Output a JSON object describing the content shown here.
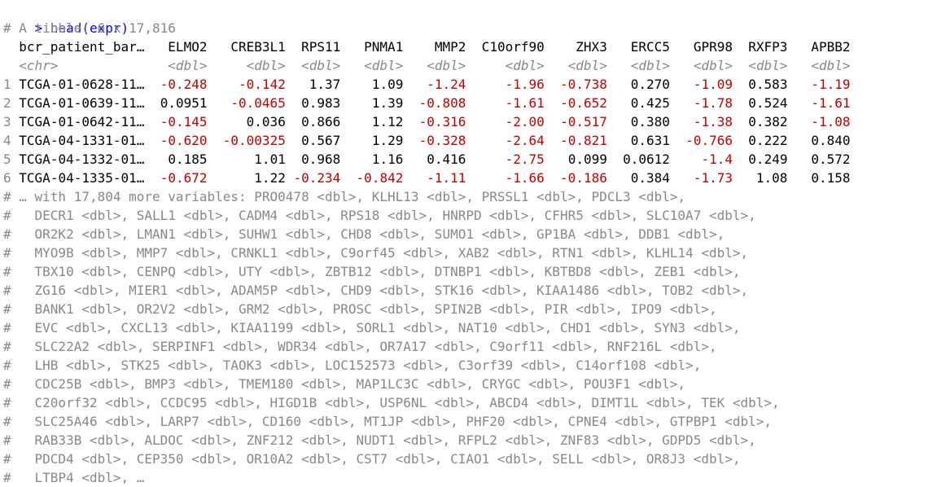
{
  "console": {
    "prompt": ">",
    "command": "head(expr)",
    "tibble_header": "# A tibble: 6 x 17,816",
    "columns": [
      {
        "name": "bcr_patient_bar…",
        "type": "<chr>"
      },
      {
        "name": "ELMO2",
        "type": "<dbl>"
      },
      {
        "name": "CREB3L1",
        "type": "<dbl>"
      },
      {
        "name": "RPS11",
        "type": "<dbl>"
      },
      {
        "name": "PNMA1",
        "type": "<dbl>"
      },
      {
        "name": "MMP2",
        "type": "<dbl>"
      },
      {
        "name": "C10orf90",
        "type": "<dbl>"
      },
      {
        "name": "ZHX3",
        "type": "<dbl>"
      },
      {
        "name": "ERCC5",
        "type": "<dbl>"
      },
      {
        "name": "GPR98",
        "type": "<dbl>"
      },
      {
        "name": "RXFP3",
        "type": "<dbl>"
      },
      {
        "name": "APBB2",
        "type": "<dbl>"
      }
    ],
    "rows": [
      {
        "n": "1",
        "cells": [
          "TCGA-01-0628-11…",
          "-0.248",
          "-0.142",
          "1.37",
          "1.09",
          "-1.24",
          "-1.96",
          "-0.738",
          "0.270",
          "-1.09",
          "0.583",
          "-1.19"
        ]
      },
      {
        "n": "2",
        "cells": [
          "TCGA-01-0639-11…",
          "0.0951",
          "-0.0465",
          "0.983",
          "1.39",
          "-0.808",
          "-1.61",
          "-0.652",
          "0.425",
          "-1.78",
          "0.524",
          "-1.61"
        ]
      },
      {
        "n": "3",
        "cells": [
          "TCGA-01-0642-11…",
          "-0.145",
          "0.036",
          "0.866",
          "1.12",
          "-0.316",
          "-2.00",
          "-0.517",
          "0.380",
          "-1.38",
          "0.382",
          "-1.08"
        ]
      },
      {
        "n": "4",
        "cells": [
          "TCGA-04-1331-01…",
          "-0.620",
          "-0.00325",
          "0.567",
          "1.29",
          "-0.328",
          "-2.64",
          "-0.821",
          "0.631",
          "-0.766",
          "0.222",
          "0.840"
        ]
      },
      {
        "n": "5",
        "cells": [
          "TCGA-04-1332-01…",
          "0.185",
          "1.01",
          "0.968",
          "1.16",
          "0.416",
          "-2.75",
          "0.099",
          "0.0612",
          "-1.4",
          "0.249",
          "0.572"
        ]
      },
      {
        "n": "6",
        "cells": [
          "TCGA-04-1335-01…",
          "-0.672",
          "1.22",
          "-0.234",
          "-0.842",
          "-1.11",
          "-1.66",
          "-0.186",
          "0.384",
          "-1.73",
          "1.08",
          "0.158"
        ]
      }
    ],
    "more_prefix": "# … with 17,804 more variables:",
    "more_lines": [
      "#   PRO0478 <dbl>, KLHL13 <dbl>, PRSSL1 <dbl>, PDCL3 <dbl>,",
      "#   DECR1 <dbl>, SALL1 <dbl>, CADM4 <dbl>, RPS18 <dbl>, HNRPD <dbl>, CFHR5 <dbl>, SLC10A7 <dbl>,",
      "#   OR2K2 <dbl>, LMAN1 <dbl>, SUHW1 <dbl>, CHD8 <dbl>, SUMO1 <dbl>, GP1BA <dbl>, DDB1 <dbl>,",
      "#   MYO9B <dbl>, MMP7 <dbl>, CRNKL1 <dbl>, C9orf45 <dbl>, XAB2 <dbl>, RTN1 <dbl>, KLHL14 <dbl>,",
      "#   TBX10 <dbl>, CENPQ <dbl>, UTY <dbl>, ZBTB12 <dbl>, DTNBP1 <dbl>, KBTBD8 <dbl>, ZEB1 <dbl>,",
      "#   ZG16 <dbl>, MIER1 <dbl>, ADAM5P <dbl>, CHD9 <dbl>, STK16 <dbl>, KIAA1486 <dbl>, TOB2 <dbl>,",
      "#   BANK1 <dbl>, OR2V2 <dbl>, GRM2 <dbl>, PROSC <dbl>, SPIN2B <dbl>, PIR <dbl>, IPO9 <dbl>,",
      "#   EVC <dbl>, CXCL13 <dbl>, KIAA1199 <dbl>, SORL1 <dbl>, NAT10 <dbl>, CHD1 <dbl>, SYN3 <dbl>,",
      "#   SLC22A2 <dbl>, SERPINF1 <dbl>, WDR34 <dbl>, OR7A17 <dbl>, C9orf11 <dbl>, RNF216L <dbl>,",
      "#   LHB <dbl>, STK25 <dbl>, TAOK3 <dbl>, LOC152573 <dbl>, C3orf39 <dbl>, C14orf108 <dbl>,",
      "#   CDC25B <dbl>, BMP3 <dbl>, TMEM180 <dbl>, MAP1LC3C <dbl>, CRYGC <dbl>, POU3F1 <dbl>,",
      "#   C20orf32 <dbl>, CCDC95 <dbl>, HIGD1B <dbl>, USP6NL <dbl>, ABCD4 <dbl>, DIMT1L <dbl>, TEK <dbl>,",
      "#   SLC25A46 <dbl>, LARP7 <dbl>, CD160 <dbl>, MT1JP <dbl>, PHF20 <dbl>, CPNE4 <dbl>, GTPBP1 <dbl>,",
      "#   RAB33B <dbl>, ALDOC <dbl>, ZNF212 <dbl>, NUDT1 <dbl>, RFPL2 <dbl>, ZNF83 <dbl>, GDPD5 <dbl>,",
      "#   PDCD4 <dbl>, CEP350 <dbl>, OR10A2 <dbl>, CST7 <dbl>, CIAO1 <dbl>, SELL <dbl>, OR8J3 <dbl>,",
      "#   LTBP4 <dbl>, …"
    ],
    "colors": {
      "command": "#0000ff",
      "comment": "#888888",
      "negative": "#c00000"
    }
  }
}
